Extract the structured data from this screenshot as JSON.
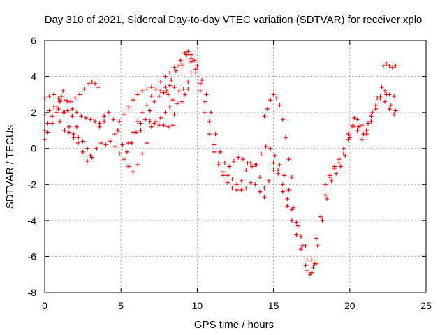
{
  "chart_data": {
    "type": "scatter",
    "title": "Day 310 of 2021, Sidereal Day-to-day VTEC variation (SDTVAR) for receiver xplo",
    "xlabel": "GPS time / hours",
    "ylabel": "SDTVAR / TECUs",
    "xlim": [
      0,
      25
    ],
    "ylim": [
      -8,
      6
    ],
    "xticks": [
      "0",
      "5",
      "10",
      "15",
      "20",
      "25"
    ],
    "yticks": [
      "-8",
      "-6",
      "-4",
      "-2",
      "0",
      "2",
      "4",
      "6"
    ],
    "grid": true,
    "marker": "plus",
    "color": "#ff0000",
    "series": [
      {
        "x": [
          0.0,
          0.3,
          0.6,
          0.9,
          1.1,
          1.4,
          1.7,
          2.0,
          2.3,
          2.6,
          2.9,
          3.1,
          3.3,
          3.5
        ],
        "y": [
          2.8,
          2.9,
          3.0,
          2.8,
          2.9,
          2.7,
          2.6,
          2.8,
          3.0,
          3.3,
          3.6,
          3.7,
          3.6,
          3.4
        ]
      },
      {
        "x": [
          0.0,
          0.3,
          0.6,
          0.9,
          1.2,
          1.5,
          1.8,
          2.1,
          2.4,
          2.7,
          3.0,
          3.3,
          3.6,
          3.9
        ],
        "y": [
          1.9,
          2.1,
          2.3,
          2.2,
          2.0,
          2.1,
          2.2,
          2.0,
          1.8,
          1.7,
          1.6,
          1.5,
          1.4,
          1.5
        ]
      },
      {
        "x": [
          0.0,
          0.2,
          0.5,
          0.8,
          1.0,
          1.3,
          1.6,
          1.9,
          2.2,
          2.5,
          2.8,
          3.0
        ],
        "y": [
          1.0,
          1.4,
          1.8,
          2.3,
          2.6,
          2.0,
          1.2,
          0.8,
          0.6,
          0.4,
          0.0,
          -0.4
        ]
      },
      {
        "x": [
          0.0,
          0.2,
          0.5,
          0.8,
          1.0,
          1.2,
          1.5,
          1.8,
          2.1
        ],
        "y": [
          0.5,
          0.9,
          1.4,
          2.0,
          2.7,
          3.2,
          2.6,
          1.8,
          1.2
        ]
      },
      {
        "x": [
          1.0,
          1.3,
          1.6,
          1.9,
          2.2,
          2.5,
          2.8,
          3.1,
          3.4,
          3.7,
          4.0,
          4.3,
          4.6,
          4.9,
          5.2,
          5.5,
          5.8,
          6.1,
          6.4,
          6.7,
          7.0,
          7.3,
          7.6,
          7.9,
          8.2,
          8.5
        ],
        "y": [
          1.5,
          1.0,
          0.9,
          0.6,
          0.3,
          -0.2,
          -0.7,
          -0.5,
          0.0,
          0.3,
          0.2,
          0.4,
          0.1,
          -0.3,
          -0.6,
          -1.0,
          -1.3,
          -0.9,
          -0.3,
          0.3,
          1.2,
          1.5,
          1.7,
          2.0,
          2.3,
          1.9
        ]
      },
      {
        "x": [
          3.6,
          3.9,
          4.2,
          4.5,
          4.8,
          5.1,
          5.4,
          5.7,
          6.0,
          6.3,
          6.6,
          6.9,
          7.2,
          7.5,
          7.8,
          8.1,
          8.4
        ],
        "y": [
          1.2,
          1.8,
          2.0,
          1.6,
          1.0,
          0.2,
          -0.2,
          0.3,
          0.9,
          1.4,
          1.6,
          1.5,
          1.4,
          1.3,
          1.3,
          1.2,
          1.3
        ]
      },
      {
        "x": [
          4.6,
          4.9,
          5.2,
          5.5,
          5.8,
          6.1,
          6.4,
          6.7,
          7.0,
          7.3,
          7.6,
          7.9,
          8.2,
          8.5,
          8.8,
          9.1,
          9.4,
          9.6
        ],
        "y": [
          0.8,
          1.5,
          1.9,
          2.3,
          2.7,
          3.0,
          3.2,
          3.3,
          3.4,
          3.3,
          3.2,
          3.4,
          3.5,
          3.4,
          3.2,
          3.3,
          3.7,
          4.2
        ]
      },
      {
        "x": [
          5.5,
          5.8,
          6.1,
          6.4,
          6.7,
          7.0,
          7.3,
          7.6,
          7.9,
          8.2,
          8.5,
          8.8,
          9.0
        ],
        "y": [
          0.3,
          0.9,
          1.5,
          2.0,
          2.4,
          2.9,
          3.3,
          3.7,
          4.0,
          4.2,
          4.5,
          4.6,
          4.7
        ]
      },
      {
        "x": [
          6.3,
          6.6,
          6.9,
          7.2,
          7.5,
          7.8,
          8.1,
          8.4,
          8.7,
          9.0,
          9.2,
          9.4
        ],
        "y": [
          1.0,
          1.6,
          2.1,
          2.6,
          2.9,
          3.1,
          3.0,
          2.7,
          2.5,
          2.6,
          3.0,
          3.3
        ]
      },
      {
        "x": [
          8.0,
          8.3,
          8.6,
          8.9,
          9.2,
          9.4,
          9.6,
          9.8,
          10.0,
          10.3,
          10.6,
          10.9,
          11.2,
          11.5,
          11.8,
          12.1,
          12.4,
          12.7,
          13.0,
          13.3,
          13.6,
          13.9,
          14.2,
          14.5,
          14.8,
          15.1,
          15.4,
          15.7,
          16.0,
          16.3,
          16.6,
          16.9,
          17.2,
          17.5,
          17.8
        ],
        "y": [
          3.2,
          3.8,
          4.3,
          4.9,
          5.3,
          5.4,
          5.2,
          4.9,
          4.6,
          3.8,
          3.0,
          2.0,
          0.8,
          -0.2,
          -0.8,
          -1.0,
          -0.7,
          -0.5,
          -0.6,
          -0.8,
          -1.0,
          -0.9,
          -0.3,
          0.1,
          0.0,
          -0.4,
          -0.9,
          -1.5,
          -2.3,
          -3.3,
          -4.3,
          -5.4,
          -6.2,
          -6.9,
          -6.4
        ]
      },
      {
        "x": [
          9.0,
          9.3,
          9.6,
          9.9,
          10.2,
          10.5,
          10.8,
          11.1,
          11.4,
          11.7,
          12.0,
          12.3,
          12.6,
          12.9,
          13.2,
          13.5,
          13.8,
          14.1,
          14.4,
          14.7,
          15.0,
          15.3,
          15.6,
          15.9,
          16.2,
          16.5,
          16.8,
          17.1,
          17.4,
          17.7
        ],
        "y": [
          4.6,
          5.2,
          5.0,
          4.4,
          3.6,
          2.6,
          1.5,
          0.2,
          -0.8,
          -1.5,
          -1.9,
          -2.2,
          -2.3,
          -1.8,
          -1.2,
          -0.8,
          -0.9,
          -1.6,
          -2.2,
          -1.8,
          -1.2,
          -1.4,
          -2.4,
          -3.2,
          -4.0,
          -4.8,
          -5.6,
          -6.5,
          -7.0,
          -6.4
        ]
      },
      {
        "x": [
          9.6,
          9.9,
          10.2,
          10.5,
          10.8,
          11.1,
          11.4,
          11.7,
          12.0,
          12.3,
          12.6,
          12.9,
          13.2,
          13.5,
          13.8,
          14.1,
          14.4,
          14.7,
          15.0,
          15.3,
          15.6,
          15.9,
          16.2,
          16.5,
          16.8,
          17.1
        ],
        "y": [
          4.8,
          4.2,
          3.2,
          2.0,
          0.8,
          -0.2,
          -0.9,
          -1.3,
          -1.5,
          -1.7,
          -2.0,
          -2.3,
          -2.2,
          -1.9,
          -2.0,
          -2.4,
          -2.7,
          -1.8,
          -0.8,
          -1.2,
          -2.0,
          -2.8,
          -3.4,
          -4.1,
          -4.9,
          -5.4
        ]
      },
      {
        "x": [
          14.4,
          14.6,
          14.8,
          15.0,
          15.2,
          15.4,
          15.6,
          15.8,
          16.0,
          16.2
        ],
        "y": [
          1.8,
          2.2,
          2.7,
          3.0,
          2.8,
          2.4,
          1.6,
          0.6,
          -0.6,
          -1.6
        ]
      },
      {
        "x": [
          17.2,
          17.5,
          17.8,
          18.1,
          18.4,
          18.7,
          19.0,
          19.3,
          19.6,
          19.9,
          20.2,
          20.5,
          20.8,
          21.1,
          21.4,
          21.7,
          22.0,
          22.3,
          22.6,
          22.9
        ],
        "y": [
          -6.8,
          -6.2,
          -5.0,
          -3.8,
          -2.6,
          -1.6,
          -1.1,
          -0.8,
          -0.3,
          0.5,
          1.2,
          1.6,
          1.3,
          1.0,
          1.8,
          2.4,
          2.9,
          3.2,
          3.0,
          2.9
        ]
      },
      {
        "x": [
          17.6,
          17.9,
          18.2,
          18.5,
          18.8,
          19.1,
          19.4,
          19.7,
          20.0,
          20.3,
          20.6,
          20.9,
          21.2,
          21.5,
          21.8,
          22.1,
          22.4,
          22.7,
          23.0
        ],
        "y": [
          -6.6,
          -5.4,
          -4.0,
          -2.8,
          -1.8,
          -1.4,
          -1.0,
          -0.4,
          0.6,
          1.7,
          1.2,
          0.8,
          1.4,
          2.0,
          2.8,
          3.4,
          3.0,
          2.4,
          2.1
        ]
      },
      {
        "x": [
          18.4,
          18.7,
          19.0,
          19.3,
          19.6,
          19.9,
          20.2,
          20.5,
          20.8,
          21.1,
          21.4,
          21.7,
          22.0,
          22.3,
          22.6,
          22.9
        ],
        "y": [
          -2.0,
          -1.5,
          -1.0,
          -0.6,
          0.0,
          0.8,
          1.3,
          1.0,
          0.5,
          0.8,
          1.5,
          2.2,
          2.8,
          2.6,
          2.2,
          1.9
        ]
      },
      {
        "x": [
          22.2,
          22.4,
          22.6,
          22.8,
          23.0
        ],
        "y": [
          4.6,
          4.7,
          4.6,
          4.5,
          4.6
        ]
      }
    ]
  }
}
